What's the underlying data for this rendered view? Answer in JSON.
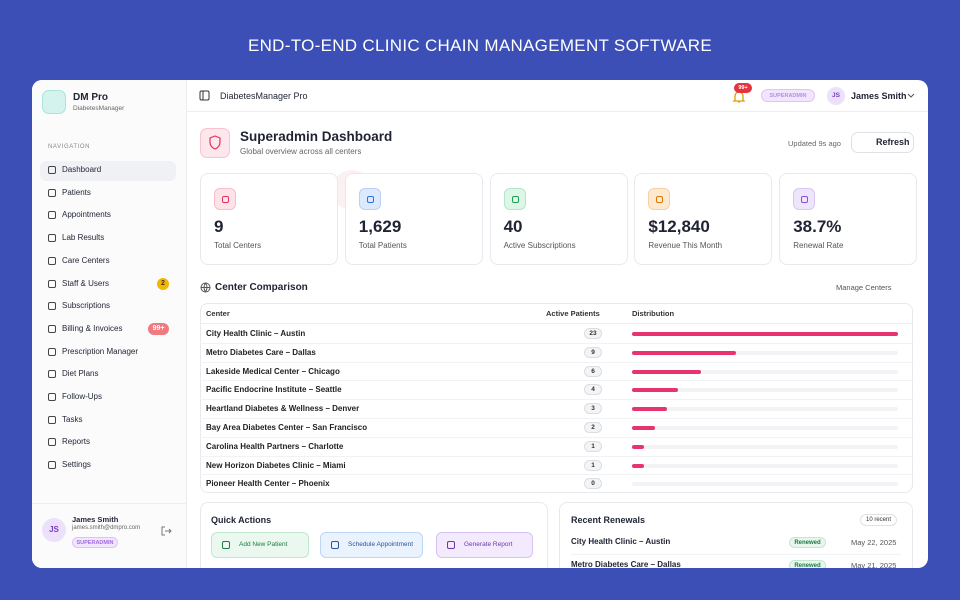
{
  "banner": "END-TO-END CLINIC CHAIN MANAGEMENT SOFTWARE",
  "sidebar": {
    "brand": "DM Pro",
    "brand_sub": "DiabetesManager",
    "nav_heading": "NAVIGATION",
    "nav": [
      {
        "label": "Dashboard"
      },
      {
        "label": "Patients"
      },
      {
        "label": "Appointments"
      },
      {
        "label": "Lab Results"
      },
      {
        "label": "Care Centers"
      },
      {
        "label": "Staff & Users",
        "badge": "2"
      },
      {
        "label": "Subscriptions"
      },
      {
        "label": "Billing & Invoices",
        "badge": "99+"
      },
      {
        "label": "Prescription Manager"
      },
      {
        "label": "Diet Plans"
      },
      {
        "label": "Follow-Ups"
      },
      {
        "label": "Tasks"
      },
      {
        "label": "Reports"
      },
      {
        "label": "Settings"
      }
    ],
    "user": {
      "avatar": "JS",
      "name": "James Smith",
      "email": "james.smith@dmpro.com",
      "role": "SUPERADMIN"
    }
  },
  "topbar": {
    "app_name": "DiabetesManager Pro",
    "notifications": "99+",
    "role": "SUPERADMIN",
    "avatar": "JS",
    "user": "James Smith"
  },
  "dashboard": {
    "title": "Superadmin Dashboard",
    "subtitle": "Global overview across all centers",
    "updated": "Updated 9s ago",
    "refresh": "Refresh"
  },
  "stats": [
    {
      "value": "9",
      "label": "Total Centers"
    },
    {
      "value": "1,629",
      "label": "Total Patients"
    },
    {
      "value": "40",
      "label": "Active Subscriptions"
    },
    {
      "value": "$12,840",
      "label": "Revenue This Month"
    },
    {
      "value": "38.7%",
      "label": "Renewal Rate"
    }
  ],
  "comparison": {
    "title": "Center Comparison",
    "link": "Manage Centers",
    "columns": [
      "Center",
      "Active Patients",
      "Distribution"
    ],
    "rows": [
      {
        "center": "City Health Clinic – Austin",
        "patients": 23
      },
      {
        "center": "Metro Diabetes Care – Dallas",
        "patients": 9
      },
      {
        "center": "Lakeside Medical Center – Chicago",
        "patients": 6
      },
      {
        "center": "Pacific Endocrine Institute – Seattle",
        "patients": 4
      },
      {
        "center": "Heartland Diabetes & Wellness – Denver",
        "patients": 3
      },
      {
        "center": "Bay Area Diabetes Center – San Francisco",
        "patients": 2
      },
      {
        "center": "Carolina Health Partners – Charlotte",
        "patients": 1
      },
      {
        "center": "New Horizon Diabetes Clinic – Miami",
        "patients": 1
      },
      {
        "center": "Pioneer Health Center – Phoenix",
        "patients": 0
      }
    ]
  },
  "quick_actions": {
    "title": "Quick Actions",
    "actions": [
      "Add New Patient",
      "Schedule Appointment",
      "Generate Report"
    ]
  },
  "renewals": {
    "title": "Recent Renewals",
    "count": "10 recent",
    "items": [
      {
        "center": "City Health Clinic – Austin",
        "status": "Renewed",
        "date": "May 22, 2025"
      },
      {
        "center": "Metro Diabetes Care – Dallas",
        "status": "Renewed",
        "date": "May 21, 2025"
      }
    ]
  }
}
